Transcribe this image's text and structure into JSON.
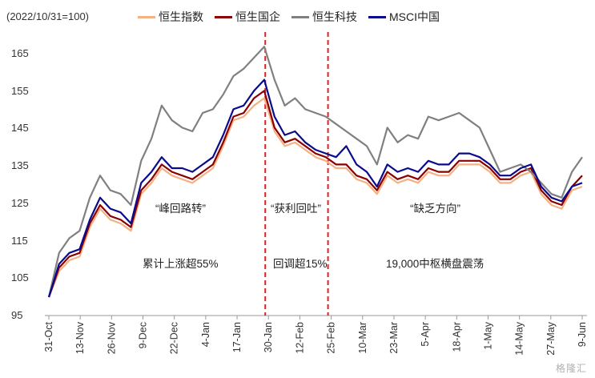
{
  "unit_label": "(2022/10/31=100)",
  "watermark": "格隆汇",
  "chart_data": {
    "type": "line",
    "ylim": [
      95,
      170
    ],
    "yticks": [
      95,
      105,
      115,
      125,
      135,
      145,
      155,
      165
    ],
    "xticks": [
      "31-Oct",
      "13-Nov",
      "26-Nov",
      "9-Dec",
      "22-Dec",
      "4-Jan",
      "17-Jan",
      "30-Jan",
      "12-Feb",
      "25-Feb",
      "10-Mar",
      "23-Mar",
      "5-Apr",
      "18-Apr",
      "1-May",
      "14-May",
      "27-May",
      "9-Jun"
    ],
    "divider_indices": [
      7,
      9
    ],
    "annotations": [
      {
        "text": "“峰回路转”"
      },
      {
        "text": "累计上涨超55%"
      },
      {
        "text": "“获利回吐”"
      },
      {
        "text": "回调超15%"
      },
      {
        "text": "“缺乏方向”"
      },
      {
        "text": "19,000中枢横盘震荡"
      }
    ],
    "series": [
      {
        "name": "恒生指数",
        "color": "#f4b183",
        "values": [
          100,
          107,
          110,
          111,
          119,
          124,
          121,
          120,
          118,
          128,
          131,
          135,
          133,
          132,
          131,
          133,
          135,
          141,
          148,
          149,
          152,
          154,
          145,
          141,
          142,
          140,
          138,
          137,
          135,
          135,
          132,
          131,
          128,
          133,
          131,
          132,
          131,
          134,
          133,
          133,
          136,
          136,
          136,
          134,
          131,
          131,
          133,
          134,
          128,
          125,
          124,
          129,
          130
        ]
      },
      {
        "name": "恒生国企",
        "color": "#8b0000",
        "values": [
          100,
          108,
          111,
          112,
          120,
          125,
          122,
          121,
          119,
          129,
          132,
          136,
          134,
          133,
          132,
          134,
          136,
          142,
          149,
          150,
          154,
          156,
          146,
          142,
          143,
          141,
          139,
          138,
          136,
          136,
          133,
          132,
          129,
          134,
          132,
          133,
          132,
          135,
          134,
          134,
          137,
          137,
          137,
          135,
          132,
          132,
          134,
          135,
          129,
          126,
          125,
          130,
          133
        ]
      },
      {
        "name": "恒生科技",
        "color": "#808080",
        "values": [
          100,
          112,
          116,
          118,
          127,
          133,
          129,
          128,
          125,
          137,
          143,
          152,
          148,
          146,
          145,
          150,
          151,
          155,
          160,
          162,
          165,
          168,
          159,
          152,
          154,
          151,
          150,
          149,
          147,
          145,
          143,
          141,
          136,
          146,
          142,
          144,
          143,
          149,
          148,
          149,
          150,
          148,
          146,
          140,
          134,
          135,
          136,
          134,
          131,
          128,
          127,
          134,
          138
        ]
      },
      {
        "name": "MSCI中国",
        "color": "#0a0a8c",
        "values": [
          100,
          109,
          112,
          113,
          121,
          127,
          124,
          123,
          120,
          131,
          134,
          138,
          135,
          135,
          134,
          136,
          138,
          144,
          151,
          152,
          156,
          159,
          149,
          144,
          145,
          142,
          140,
          139,
          138,
          141,
          136,
          134,
          130,
          136,
          134,
          135,
          134,
          137,
          136,
          136,
          139,
          139,
          138,
          136,
          133,
          133,
          135,
          136,
          130,
          127,
          126,
          130,
          131
        ]
      }
    ]
  }
}
